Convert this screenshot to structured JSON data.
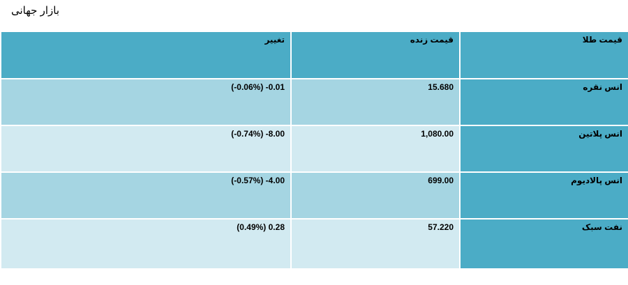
{
  "page": {
    "title": "بازار جهانی"
  },
  "table": {
    "headers": {
      "name": "قیمت طلا",
      "live_price": "قیمت زنده",
      "change": "تغییر"
    },
    "rows": [
      {
        "name": "انس نقره",
        "live_price": "15.680",
        "change": "(-0.06%) -0.01"
      },
      {
        "name": "انس پلاتین",
        "live_price": "1,080.00",
        "change": "(-0.74%) -8.00"
      },
      {
        "name": "انس پالادیوم",
        "live_price": "699.00",
        "change": "(-0.57%) -4.00"
      },
      {
        "name": "نفت سبک",
        "live_price": "57.220",
        "change": "(0.49%) 0.28"
      }
    ]
  },
  "colors": {
    "header_bg": "#4bacc6",
    "row_odd_bg": "#a5d5e2",
    "row_even_bg": "#d2eaf1"
  }
}
